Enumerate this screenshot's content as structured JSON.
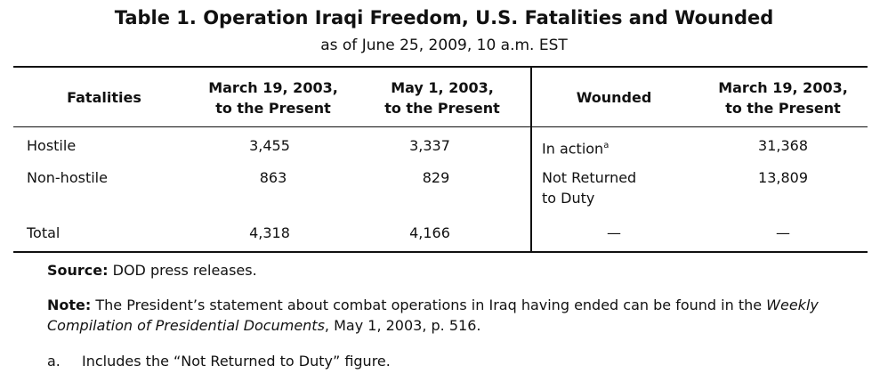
{
  "title": "Table 1. Operation Iraqi Freedom, U.S. Fatalities and Wounded",
  "subtitle": "as of June 25, 2009, 10 a.m. EST",
  "table": {
    "header": [
      "Fatalities",
      [
        "March 19, 2003,",
        "to the Present"
      ],
      [
        "May 1, 2003,",
        "to the Present"
      ],
      "Wounded",
      [
        "March 19, 2003,",
        "to the Present"
      ]
    ],
    "rows": [
      [
        "Hostile",
        "3,455",
        "3,337",
        "In action",
        "31,368"
      ],
      [
        "Non-hostile",
        "863",
        "829",
        [
          "Not Returned",
          "to Duty"
        ],
        "13,809"
      ],
      [
        "Total",
        "4,318",
        "4,166",
        "—",
        "—"
      ]
    ],
    "in_action_marker": "a"
  },
  "source": {
    "label": "Source:",
    "text": "DOD press releases."
  },
  "note": {
    "label": "Note:",
    "text": [
      "The President’s statement about combat operations in Iraq having ended can be found in the ",
      "Weekly Compilation of Presidential Documents",
      ", May 1, 2003, p. 516."
    ]
  },
  "footnote": {
    "marker": "a.",
    "text": "Includes the “Not Returned to Duty” figure."
  }
}
